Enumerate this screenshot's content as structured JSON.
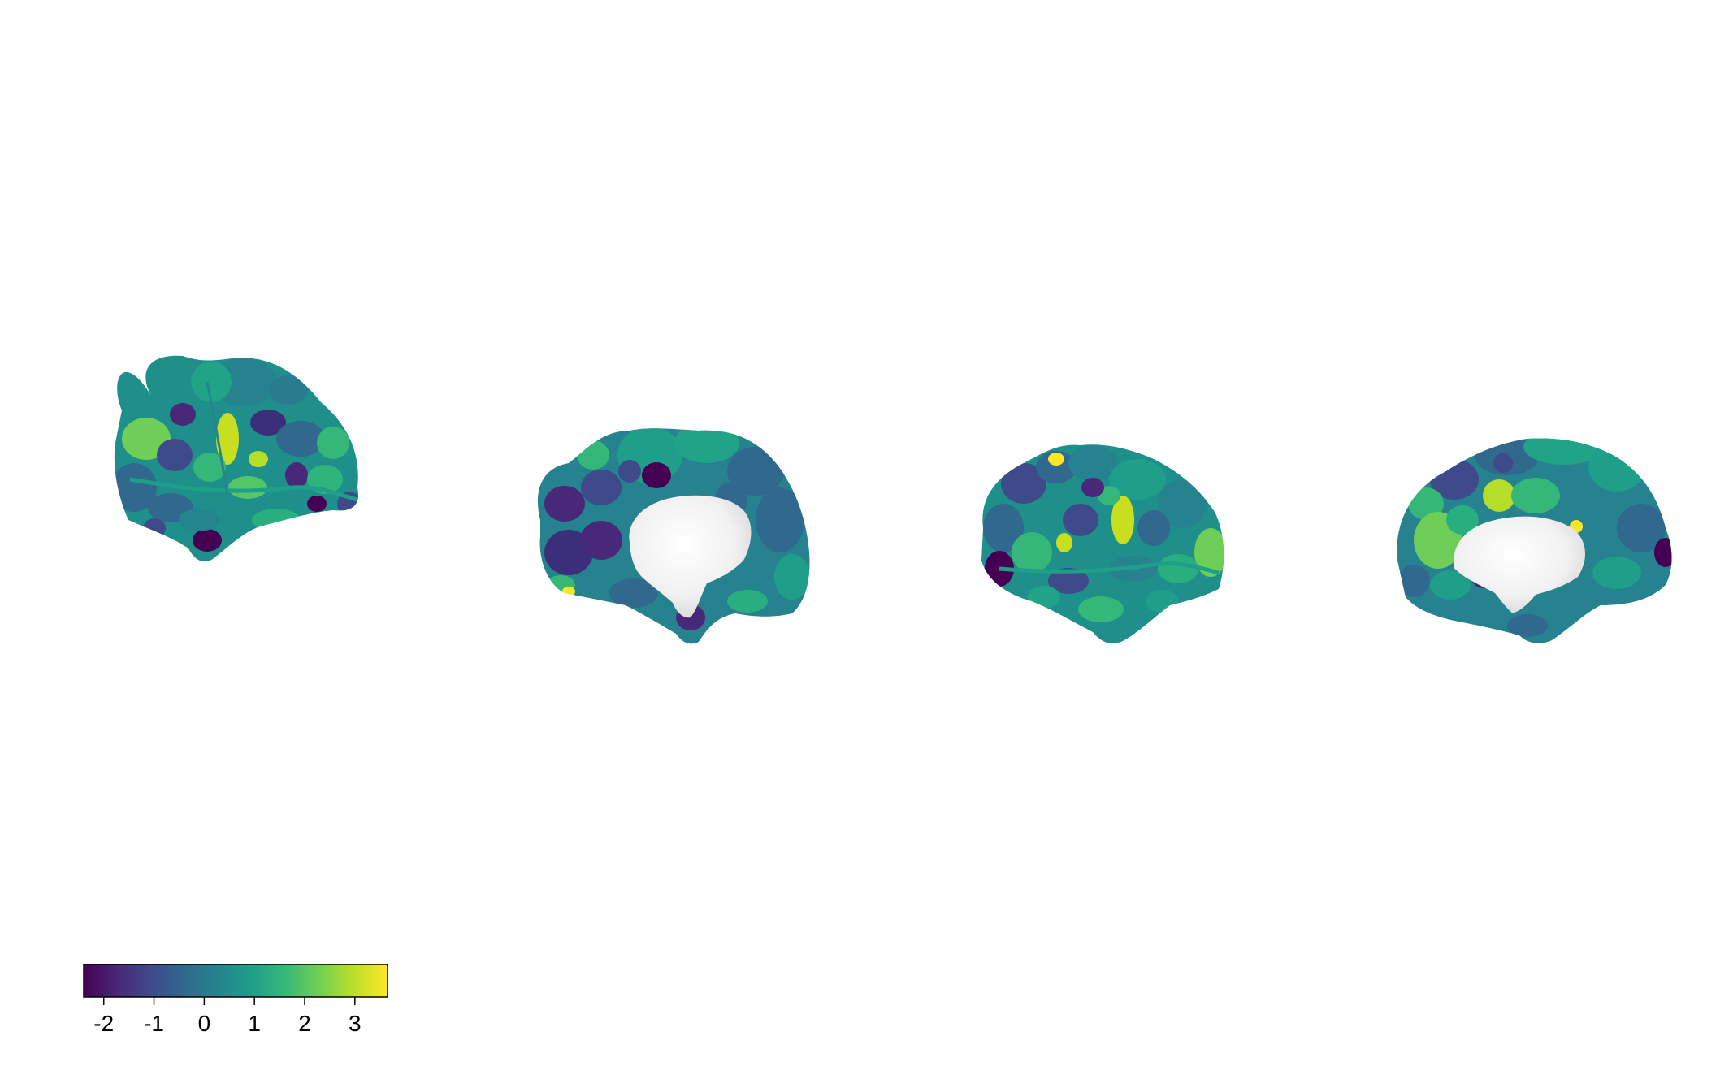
{
  "colormap": {
    "name": "viridis",
    "min": -2.4,
    "max": 3.65,
    "stops": [
      "#440154",
      "#482878",
      "#3e4a89",
      "#31688e",
      "#26828e",
      "#1f9e89",
      "#35b779",
      "#6ece58",
      "#b5de2b",
      "#fde725"
    ]
  },
  "colorbar": {
    "ticks": [
      {
        "value": -2,
        "label": "-2"
      },
      {
        "value": -1,
        "label": "-1"
      },
      {
        "value": 0,
        "label": "0"
      },
      {
        "value": 1,
        "label": "1"
      },
      {
        "value": 2,
        "label": "2"
      },
      {
        "value": 3,
        "label": "3"
      }
    ]
  },
  "views": [
    {
      "name": "left-lateral-view"
    },
    {
      "name": "left-medial-view"
    },
    {
      "name": "right-lateral-view"
    },
    {
      "name": "right-medial-view"
    }
  ]
}
